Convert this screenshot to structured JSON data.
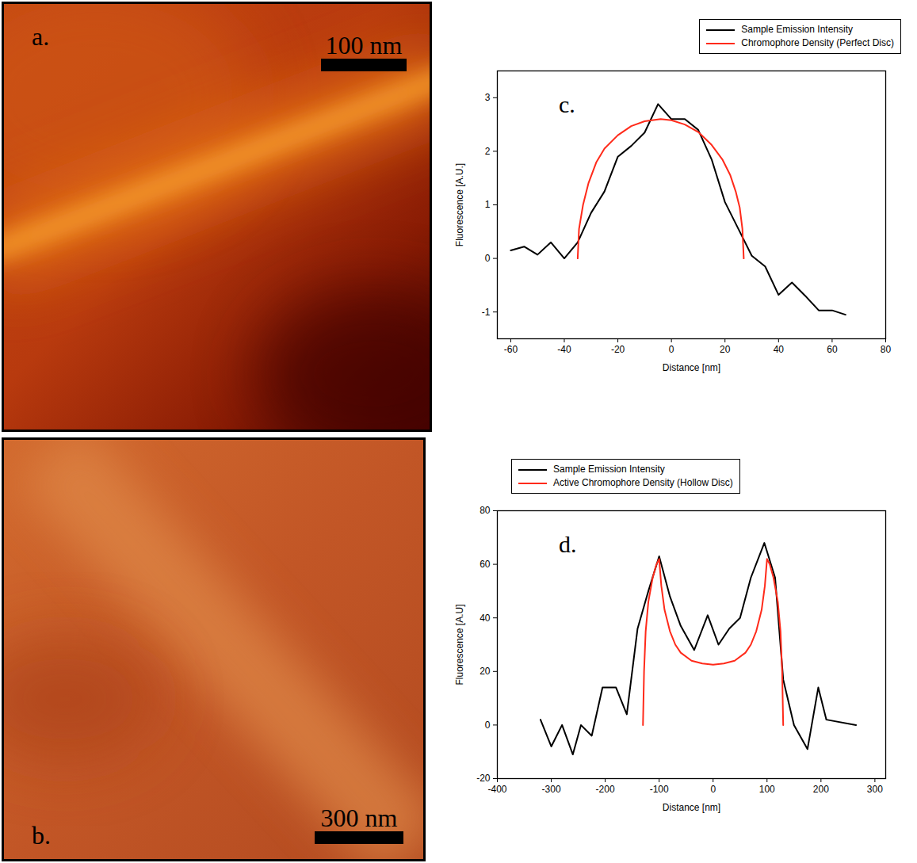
{
  "images": [
    {
      "label": "a.",
      "scale_bar": "100 nm"
    },
    {
      "label": "b.",
      "scale_bar": "300 nm"
    }
  ],
  "chart_data": [
    {
      "type": "line",
      "annotations": [
        "c."
      ],
      "x_label": "Distance [nm]",
      "y_label": "Fluorescence [A.U.]",
      "xlim": [
        -65,
        80
      ],
      "xticks": [
        -60,
        -40,
        -20,
        0,
        20,
        40,
        60,
        80
      ],
      "ylim": [
        -1.5,
        3.5
      ],
      "yticks": [
        -1,
        0,
        1,
        2,
        3
      ],
      "grid": false,
      "legend": "top-right",
      "series": [
        {
          "name": "Sample Emission Intensity",
          "color": "#000000",
          "x": [
            -60,
            -55,
            -50,
            -45,
            -40,
            -35,
            -30,
            -25,
            -20,
            -15,
            -10,
            -5,
            0,
            5,
            10,
            15,
            20,
            25,
            30,
            35,
            40,
            45,
            50,
            55,
            60,
            65
          ],
          "values": [
            0.15,
            0.22,
            0.07,
            0.3,
            0.0,
            0.3,
            0.85,
            1.25,
            1.9,
            2.1,
            2.35,
            2.88,
            2.6,
            2.6,
            2.4,
            1.85,
            1.05,
            0.55,
            0.05,
            -0.15,
            -0.68,
            -0.45,
            -0.7,
            -0.97,
            -0.97,
            -1.05
          ]
        },
        {
          "name": "Chromophore Density (Perfect Disc)",
          "color": "#ff2a1a",
          "x": [
            -35,
            -34.5,
            -33,
            -31,
            -28,
            -25,
            -20,
            -15,
            -10,
            -4,
            0,
            5,
            10,
            15,
            19,
            22,
            24,
            25.5,
            26.5,
            27
          ],
          "values": [
            0,
            0.55,
            1.0,
            1.4,
            1.8,
            2.05,
            2.3,
            2.47,
            2.56,
            2.6,
            2.58,
            2.5,
            2.36,
            2.12,
            1.85,
            1.55,
            1.25,
            0.95,
            0.55,
            0
          ]
        }
      ]
    },
    {
      "type": "line",
      "annotations": [
        "d."
      ],
      "x_label": "Distance [nm]",
      "y_label": "Fluorescence [A.U]",
      "xlim": [
        -400,
        320
      ],
      "xticks": [
        -400,
        -300,
        -200,
        -100,
        0,
        100,
        200,
        300
      ],
      "ylim": [
        -20,
        80
      ],
      "yticks": [
        -20,
        0,
        20,
        40,
        60,
        80
      ],
      "grid": false,
      "legend": "top",
      "series": [
        {
          "name": "Sample Emission Intensity",
          "color": "#000000",
          "x": [
            -320,
            -300,
            -280,
            -260,
            -245,
            -225,
            -205,
            -180,
            -160,
            -140,
            -120,
            -100,
            -80,
            -60,
            -35,
            -10,
            10,
            30,
            50,
            70,
            95,
            115,
            130,
            150,
            175,
            195,
            210,
            265
          ],
          "values": [
            2,
            -8,
            0,
            -11,
            0,
            -4,
            14,
            14,
            4,
            36,
            50,
            63,
            48,
            37,
            28,
            41,
            30,
            36,
            40,
            55,
            68,
            55,
            17,
            0,
            -9,
            14,
            2,
            0
          ]
        },
        {
          "name": "Active Chromophore Density (Hollow Disc)",
          "color": "#ff2a1a",
          "x": [
            -130,
            -128,
            -125,
            -120,
            -112,
            -105,
            -100,
            -96,
            -90,
            -80,
            -70,
            -60,
            -40,
            -20,
            0,
            20,
            40,
            60,
            70,
            80,
            90,
            96,
            100,
            105,
            112,
            120,
            125,
            128,
            130
          ],
          "values": [
            0,
            20,
            35,
            46,
            55,
            60,
            62,
            52,
            43,
            35,
            30,
            27,
            24,
            23,
            22.5,
            23,
            24,
            27,
            30,
            35,
            43,
            52,
            62,
            60,
            55,
            46,
            35,
            20,
            0
          ]
        }
      ]
    }
  ]
}
